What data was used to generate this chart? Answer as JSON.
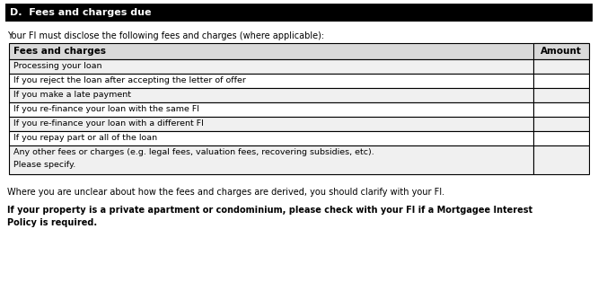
{
  "title": "D.  Fees and charges due",
  "title_bg": "#000000",
  "title_color": "#ffffff",
  "intro_text": "Your FI must disclose the following fees and charges (where applicable):",
  "header_row": [
    "Fees and charges",
    "Amount"
  ],
  "header_bg": "#d9d9d9",
  "table_rows": [
    "Processing your loan",
    "If you reject the loan after accepting the letter of offer",
    "If you make a late payment",
    "If you re-finance your loan with the same FI",
    "If you re-finance your loan with a different FI",
    "If you repay part or all of the loan",
    "Any other fees or charges (e.g. legal fees, valuation fees, recovering subsidies, etc).\nPlease specify."
  ],
  "row_bg_odd": "#f0f0f0",
  "row_bg_even": "#ffffff",
  "footer_normal": "Where you are unclear about how the fees and charges are derived, you should clarify with your FI.",
  "footer_bold_line1": "If your property is a private apartment or condominium, please check with your FI if a Mortgagee Interest",
  "footer_bold_line2": "Policy is required.",
  "bg_color": "#ffffff",
  "border_color": "#000000",
  "text_color": "#000000",
  "figsize": [
    6.66,
    3.14
  ],
  "dpi": 100
}
